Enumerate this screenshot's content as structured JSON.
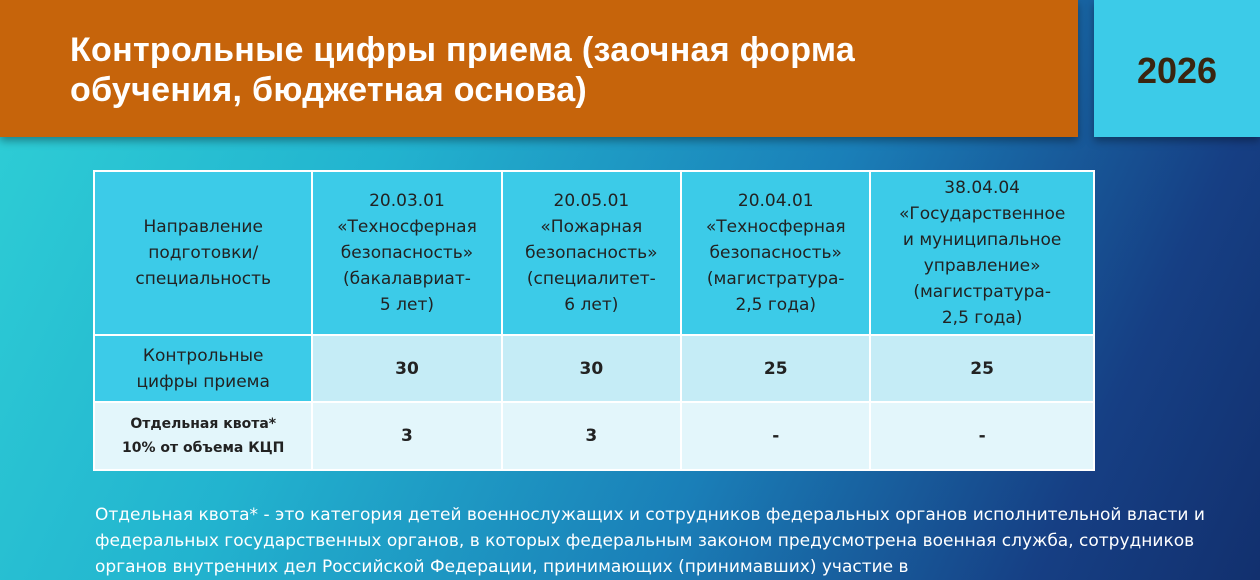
{
  "header": {
    "title_line1": "Контрольные цифры приема (заочная форма",
    "title_line2": "обучения, бюджетная основа)",
    "year": "2026"
  },
  "table": {
    "header_row": [
      [
        "Направление",
        "подготовки/",
        "специальность"
      ],
      [
        "20.03.01",
        "«Техносферная",
        "безопасность»",
        "(бакалавриат-",
        "5 лет)"
      ],
      [
        "20.05.01",
        "«Пожарная",
        "безопасность»",
        "(специалитет-",
        "6 лет)"
      ],
      [
        "20.04.01",
        "«Техносферная",
        "безопасность»",
        "(магистратура-",
        "2,5 года)"
      ],
      [
        "38.04.04",
        "«Государственное",
        "и муниципальное",
        "управление»",
        "(магистратура-",
        "2,5 года)"
      ]
    ],
    "rows": [
      {
        "label": [
          "Контрольные",
          "цифры приема"
        ],
        "values": [
          "30",
          "30",
          "25",
          "25"
        ]
      },
      {
        "label": [
          "Отдельная квота*",
          "10% от объема КЦП"
        ],
        "values": [
          "3",
          "3",
          "-",
          "-"
        ]
      }
    ]
  },
  "note": "Отдельная квота* - это категория детей военнослужащих и сотрудников федеральных органов исполнительной власти и федеральных государственных органов, в которых федеральным законом предусмотрена военная служба, сотрудников органов внутренних дел Российской Федерации, принимающих (принимавших) участие в"
}
